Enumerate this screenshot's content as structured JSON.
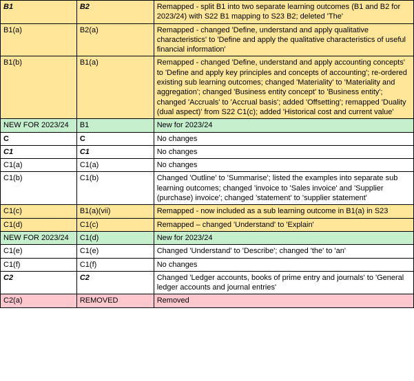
{
  "rows": [
    {
      "bg": "bg-orange",
      "cells": [
        {
          "text": "B1",
          "style": "bolditalic"
        },
        {
          "text": "B2",
          "style": "bolditalic"
        },
        {
          "text": "Remapped - split B1 into two separate learning outcomes (B1 and B2 for 2023/24) with S22 B1 mapping to S23 B2; deleted 'The'",
          "style": ""
        }
      ]
    },
    {
      "bg": "bg-orange",
      "cells": [
        {
          "text": "B1(a)",
          "style": ""
        },
        {
          "text": "B2(a)",
          "style": ""
        },
        {
          "text": "Remapped - changed 'Define, understand and apply qualitative characteristics' to 'Define and apply the qualitative characteristics of useful financial information'",
          "style": ""
        }
      ]
    },
    {
      "bg": "bg-orange",
      "cells": [
        {
          "text": "B1(b)",
          "style": ""
        },
        {
          "text": "B1(a)",
          "style": ""
        },
        {
          "text": "Remapped - changed 'Define, understand and apply accounting concepts' to 'Define and apply key principles and concepts of accounting'; re-ordered existing sub learning outcomes; changed 'Materiality' to 'Materiality and aggregation'; changed 'Business entity concept' to 'Business entity'; changed 'Accruals' to 'Accrual basis'; added 'Offsetting'; remapped 'Duality (dual aspect)' from S22 C1(c); added 'Historical cost and current value'",
          "style": ""
        }
      ]
    },
    {
      "bg": "bg-green",
      "cells": [
        {
          "text": "NEW FOR 2023/24",
          "style": ""
        },
        {
          "text": "B1",
          "style": ""
        },
        {
          "text": "New for 2023/24",
          "style": ""
        }
      ]
    },
    {
      "bg": "bg-white",
      "cells": [
        {
          "text": "C",
          "style": "bold"
        },
        {
          "text": "C",
          "style": "bold"
        },
        {
          "text": "No changes",
          "style": ""
        }
      ]
    },
    {
      "bg": "bg-white",
      "cells": [
        {
          "text": "C1",
          "style": "bolditalic"
        },
        {
          "text": "C1",
          "style": "bolditalic"
        },
        {
          "text": "No changes",
          "style": ""
        }
      ]
    },
    {
      "bg": "bg-white",
      "cells": [
        {
          "text": "C1(a)",
          "style": ""
        },
        {
          "text": "C1(a)",
          "style": ""
        },
        {
          "text": "No changes",
          "style": ""
        }
      ]
    },
    {
      "bg": "bg-white",
      "cells": [
        {
          "text": "C1(b)",
          "style": ""
        },
        {
          "text": "C1(b)",
          "style": ""
        },
        {
          "text": "Changed 'Outline' to 'Summarise'; listed the examples into separate sub learning outcomes; changed 'invoice to 'Sales invoice' and 'Supplier (purchase) invoice'; changed 'statement' to 'supplier statement'",
          "style": ""
        }
      ]
    },
    {
      "bg": "bg-orange",
      "cells": [
        {
          "text": "C1(c)",
          "style": ""
        },
        {
          "text": "B1(a)(vii)",
          "style": ""
        },
        {
          "text": "Remapped - now included as a sub learning outcome in B1(a) in S23",
          "style": ""
        }
      ]
    },
    {
      "bg": "bg-orange",
      "cells": [
        {
          "text": "C1(d)",
          "style": ""
        },
        {
          "text": "C1(c)",
          "style": ""
        },
        {
          "text": "Remapped – changed 'Understand' to 'Explain'",
          "style": ""
        }
      ]
    },
    {
      "bg": "bg-green",
      "cells": [
        {
          "text": "NEW FOR 2023/24",
          "style": ""
        },
        {
          "text": "C1(d)",
          "style": ""
        },
        {
          "text": "New for 2023/24",
          "style": ""
        }
      ]
    },
    {
      "bg": "bg-white",
      "cells": [
        {
          "text": "C1(e)",
          "style": ""
        },
        {
          "text": "C1(e)",
          "style": ""
        },
        {
          "text": "Changed 'Understand' to 'Describe'; changed 'the' to 'an'",
          "style": ""
        }
      ]
    },
    {
      "bg": "bg-white",
      "cells": [
        {
          "text": "C1(f)",
          "style": ""
        },
        {
          "text": "C1(f)",
          "style": ""
        },
        {
          "text": "No changes",
          "style": ""
        }
      ]
    },
    {
      "bg": "bg-white",
      "cells": [
        {
          "text": "C2",
          "style": "bolditalic"
        },
        {
          "text": "C2",
          "style": "bolditalic"
        },
        {
          "text": "Changed 'Ledger accounts, books of prime entry and journals' to 'General ledger accounts and journal entries'",
          "style": ""
        }
      ]
    },
    {
      "bg": "bg-pink",
      "cells": [
        {
          "text": "C2(a)",
          "style": ""
        },
        {
          "text": "REMOVED",
          "style": ""
        },
        {
          "text": "Removed",
          "style": ""
        }
      ]
    }
  ]
}
